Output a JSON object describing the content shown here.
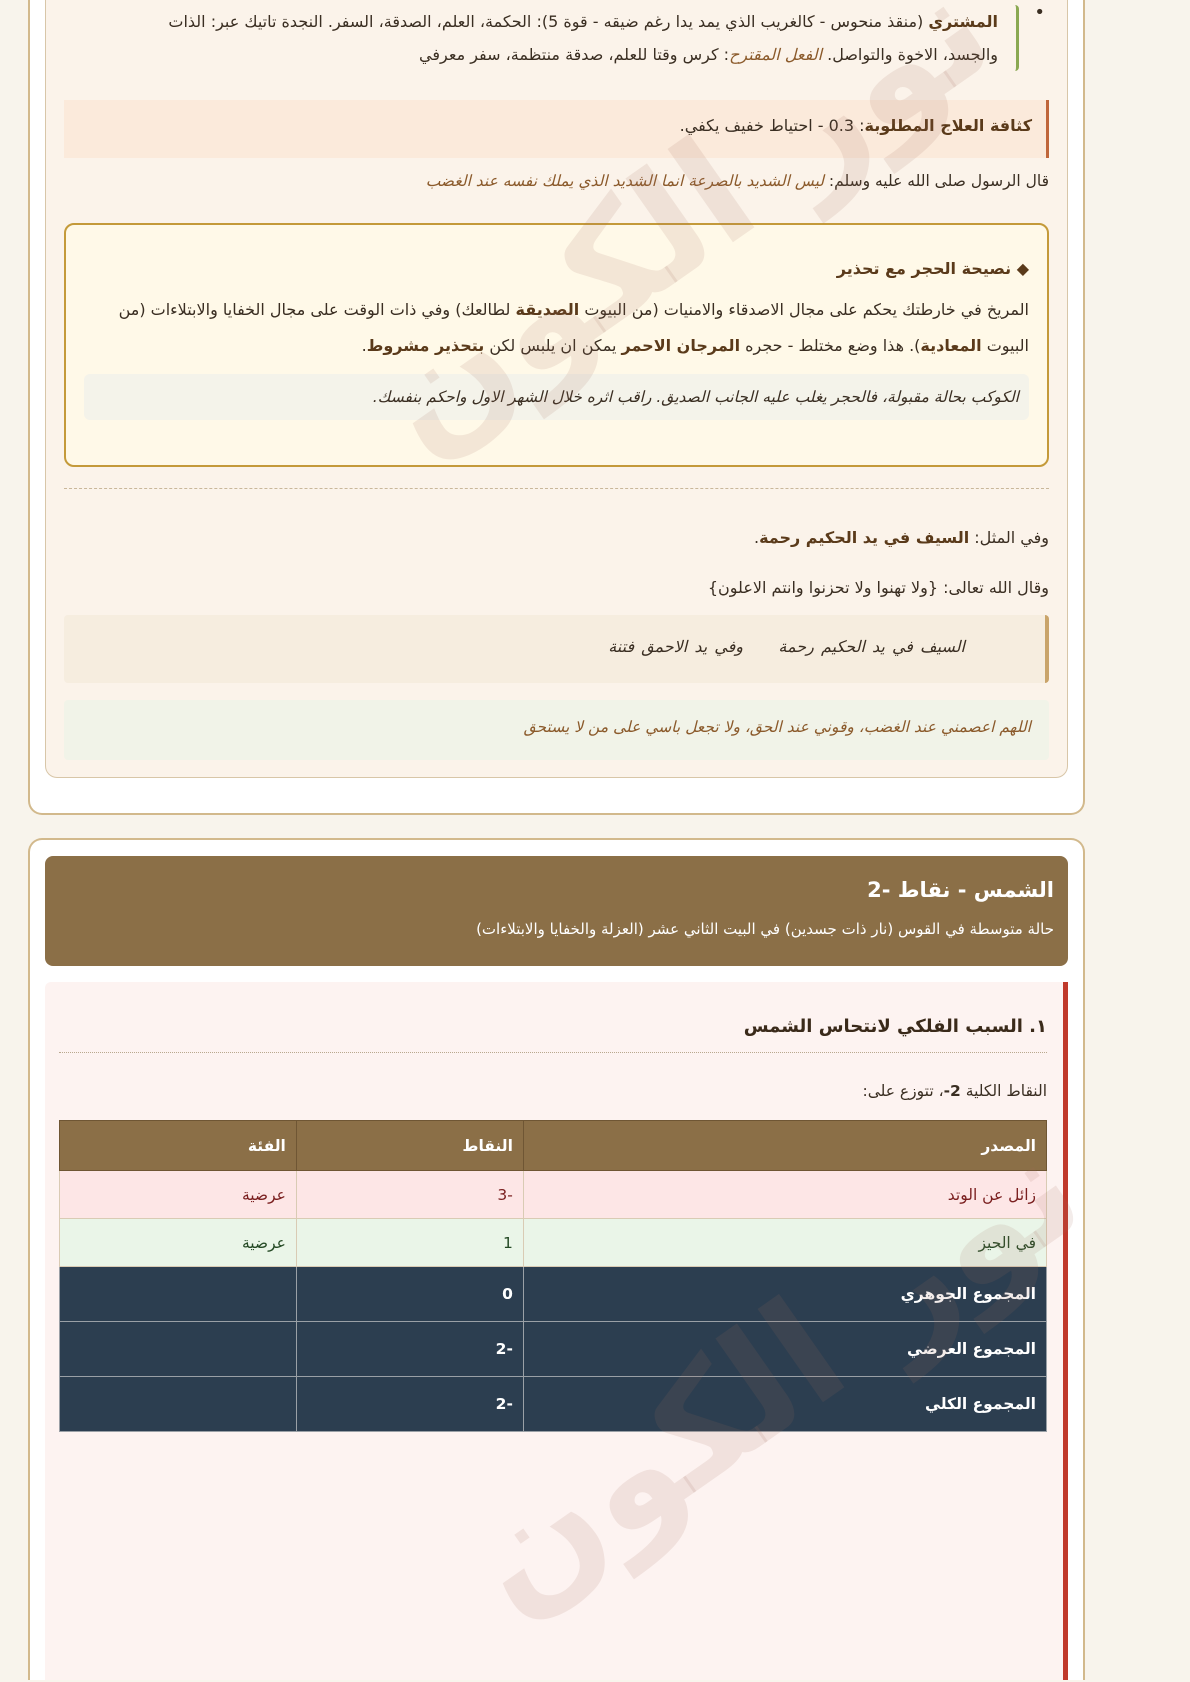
{
  "watermark": "نور الكون",
  "section1": {
    "jupiter": {
      "name": "المشتري",
      "text1": " (منقذ منحوس - كالغريب الذي يمد يدا رغم ضيقه - قوة 5): الحكمة، العلم، الصدقة، السفر. النجدة تاتيك عبر: الذات والجسد، الاخوة والتواصل. ",
      "action_label": "الفعل المقترح",
      "action_text": ": كرس وقتا للعلم، صدقة منتظمة، سفر معرفي"
    },
    "density": {
      "label": "كثافة العلاج المطلوبة",
      "text": ": 0.3 - احتياط خفيف يكفي."
    },
    "hadith": {
      "prefix": "قال الرسول صلى الله عليه وسلم: ",
      "text": "ليس الشديد بالصرعة انما الشديد الذي يملك نفسه عند الغضب"
    },
    "advice": {
      "title": "◆ نصيحة الحجر مع تحذير",
      "t1": "المريخ في خارطتك يحكم على مجال الاصدقاء والامنيات (من البيوت ",
      "b1": "الصديقة",
      "t2": " لطالعك) وفي ذات الوقت على مجال الخفايا والابتلاءات (من البيوت ",
      "b2": "المعادية",
      "t3": "). هذا وضع مختلط - حجره ",
      "b3": "المرجان الاحمر",
      "t4": " يمكن ان يلبس لكن ",
      "b4": "بتحذير مشروط",
      "t5": ".",
      "note": "الكوكب بحالة مقبولة، فالحجر يغلب عليه الجانب الصديق. راقب اثره خلال الشهر الاول واحكم بنفسك."
    },
    "proverb": {
      "prefix": "وفي المثل: ",
      "bold": "السيف في يد الحكيم رحمة",
      "suffix": "."
    },
    "quran": "وقال الله تعالى: {ولا تهنوا ولا تحزنوا وانتم الاعلون}",
    "quote": {
      "part1": "السيف في يد الحكيم رحمة",
      "part2": "وفي يد الاحمق فتنة"
    },
    "prayer": "اللهم اعصمني عند الغضب، وقوني عند الحق، ولا تجعل باسي على من لا يستحق"
  },
  "section2": {
    "title": "الشمس - نقاط -2",
    "subtitle": "حالة متوسطة في القوس (نار ذات جسدين) في البيت الثاني عشر (العزلة والخفايا والابتلاءات)",
    "heading": "١. السبب الفلكي لانتحاس الشمس",
    "total": {
      "prefix": "النقاط الكلية ",
      "value": "-2",
      "suffix": "، تتوزع على:"
    },
    "table": {
      "headers": [
        "المصدر",
        "النقاط",
        "الفئة"
      ],
      "rows": [
        [
          "زائل عن الوتد",
          "-3",
          "عرضية"
        ],
        [
          "في الحيز",
          "1",
          "عرضية"
        ]
      ],
      "sums": [
        [
          "المجموع الجوهري",
          "0",
          ""
        ],
        [
          "المجموع العرضي",
          "-2",
          ""
        ],
        [
          "المجموع الكلي",
          "-2",
          ""
        ]
      ]
    }
  },
  "colors": {
    "header": "#8b6f47",
    "summary": "#2c3e50",
    "accent_red": "#c0392b",
    "gold": "#c49a3a"
  }
}
